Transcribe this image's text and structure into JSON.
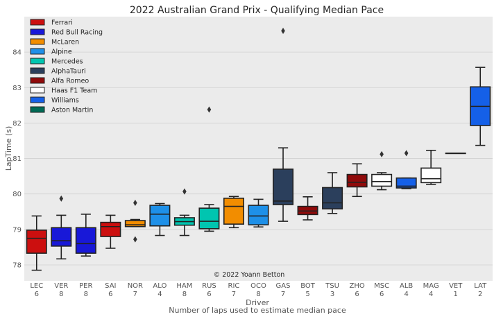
{
  "chart_data": {
    "type": "box",
    "title": "2022 Australian Grand Prix - Qualifying Median Pace",
    "xlabel": "Driver",
    "xlabel2": "Number of laps used to estimate median pace",
    "ylabel": "LapTime (s)",
    "ylim": [
      77.55,
      85
    ],
    "yticks": [
      78,
      79,
      80,
      81,
      82,
      83,
      84
    ],
    "grid": true,
    "legend_position": "top-left",
    "credit": "© 2022 Yoann Betton",
    "teams": [
      {
        "name": "Ferrari",
        "color": "#cc0f0f"
      },
      {
        "name": "Red Bull Racing",
        "color": "#1818d8"
      },
      {
        "name": "McLaren",
        "color": "#f28d00"
      },
      {
        "name": "Alpine",
        "color": "#1e90e8"
      },
      {
        "name": "Mercedes",
        "color": "#00c5b0"
      },
      {
        "name": "AlphaTauri",
        "color": "#2b3f5c"
      },
      {
        "name": "Alfa Romeo",
        "color": "#900a0a"
      },
      {
        "name": "Haas F1 Team",
        "color": "#ffffff"
      },
      {
        "name": "Williams",
        "color": "#1560e8"
      },
      {
        "name": "Aston Martin",
        "color": "#006a55"
      }
    ],
    "boxes": [
      {
        "driver": "LEC",
        "laps": "6",
        "team": "Ferrari",
        "whislo": 77.85,
        "q1": 78.33,
        "med": 78.75,
        "q3": 78.98,
        "whishi": 79.38,
        "fliers": []
      },
      {
        "driver": "VER",
        "laps": "8",
        "team": "Red Bull Racing",
        "whislo": 78.17,
        "q1": 78.53,
        "med": 78.68,
        "q3": 79.05,
        "whishi": 79.4,
        "fliers": [
          79.87
        ]
      },
      {
        "driver": "PER",
        "laps": "8",
        "team": "Red Bull Racing",
        "whislo": 78.25,
        "q1": 78.33,
        "med": 78.6,
        "q3": 79.05,
        "whishi": 79.43,
        "fliers": []
      },
      {
        "driver": "SAI",
        "laps": "6",
        "team": "Ferrari",
        "whislo": 78.47,
        "q1": 78.8,
        "med": 79.08,
        "q3": 79.2,
        "whishi": 79.4,
        "fliers": []
      },
      {
        "driver": "NOR",
        "laps": "7",
        "team": "McLaren",
        "whislo": 79.08,
        "q1": 79.08,
        "med": 79.13,
        "q3": 79.25,
        "whishi": 79.28,
        "fliers": [
          79.75,
          78.72
        ]
      },
      {
        "driver": "ALO",
        "laps": "4",
        "team": "Alpine",
        "whislo": 78.83,
        "q1": 79.1,
        "med": 79.43,
        "q3": 79.68,
        "whishi": 79.73,
        "fliers": []
      },
      {
        "driver": "HAM",
        "laps": "8",
        "team": "Mercedes",
        "whislo": 78.83,
        "q1": 79.12,
        "med": 79.22,
        "q3": 79.33,
        "whishi": 79.4,
        "fliers": [
          80.07
        ]
      },
      {
        "driver": "RUS",
        "laps": "6",
        "team": "Mercedes",
        "whislo": 78.95,
        "q1": 79.02,
        "med": 79.23,
        "q3": 79.6,
        "whishi": 79.7,
        "fliers": [
          82.38
        ]
      },
      {
        "driver": "RIC",
        "laps": "7",
        "team": "McLaren",
        "whislo": 79.05,
        "q1": 79.15,
        "med": 79.65,
        "q3": 79.88,
        "whishi": 79.93,
        "fliers": []
      },
      {
        "driver": "OCO",
        "laps": "8",
        "team": "Alpine",
        "whislo": 79.07,
        "q1": 79.13,
        "med": 79.38,
        "q3": 79.68,
        "whishi": 79.85,
        "fliers": []
      },
      {
        "driver": "GAS",
        "laps": "7",
        "team": "AlphaTauri",
        "whislo": 79.23,
        "q1": 79.7,
        "med": 79.8,
        "q3": 80.7,
        "whishi": 81.3,
        "fliers": [
          84.6
        ]
      },
      {
        "driver": "BOT",
        "laps": "5",
        "team": "Alfa Romeo",
        "whislo": 79.27,
        "q1": 79.42,
        "med": 79.52,
        "q3": 79.65,
        "whishi": 79.92,
        "fliers": []
      },
      {
        "driver": "TSU",
        "laps": "3",
        "team": "AlphaTauri",
        "whislo": 79.45,
        "q1": 79.58,
        "med": 79.75,
        "q3": 80.18,
        "whishi": 80.6,
        "fliers": []
      },
      {
        "driver": "ZHO",
        "laps": "6",
        "team": "Alfa Romeo",
        "whislo": 79.93,
        "q1": 80.2,
        "med": 80.33,
        "q3": 80.55,
        "whishi": 80.85,
        "fliers": []
      },
      {
        "driver": "MSC",
        "laps": "6",
        "team": "Haas F1 Team",
        "whislo": 80.12,
        "q1": 80.22,
        "med": 80.35,
        "q3": 80.55,
        "whishi": 80.6,
        "fliers": [
          81.12
        ]
      },
      {
        "driver": "ALB",
        "laps": "4",
        "team": "Williams",
        "whislo": 80.15,
        "q1": 80.17,
        "med": 80.22,
        "q3": 80.45,
        "whishi": 80.45,
        "fliers": [
          81.15
        ]
      },
      {
        "driver": "MAG",
        "laps": "4",
        "team": "Haas F1 Team",
        "whislo": 80.27,
        "q1": 80.32,
        "med": 80.43,
        "q3": 80.73,
        "whishi": 81.23,
        "fliers": []
      },
      {
        "driver": "VET",
        "laps": "1",
        "team": "Aston Martin",
        "whislo": 81.15,
        "q1": 81.15,
        "med": 81.15,
        "q3": 81.15,
        "whishi": 81.15,
        "fliers": []
      },
      {
        "driver": "LAT",
        "laps": "2",
        "team": "Williams",
        "whislo": 81.37,
        "q1": 81.93,
        "med": 82.47,
        "q3": 83.02,
        "whishi": 83.57,
        "fliers": []
      }
    ]
  }
}
